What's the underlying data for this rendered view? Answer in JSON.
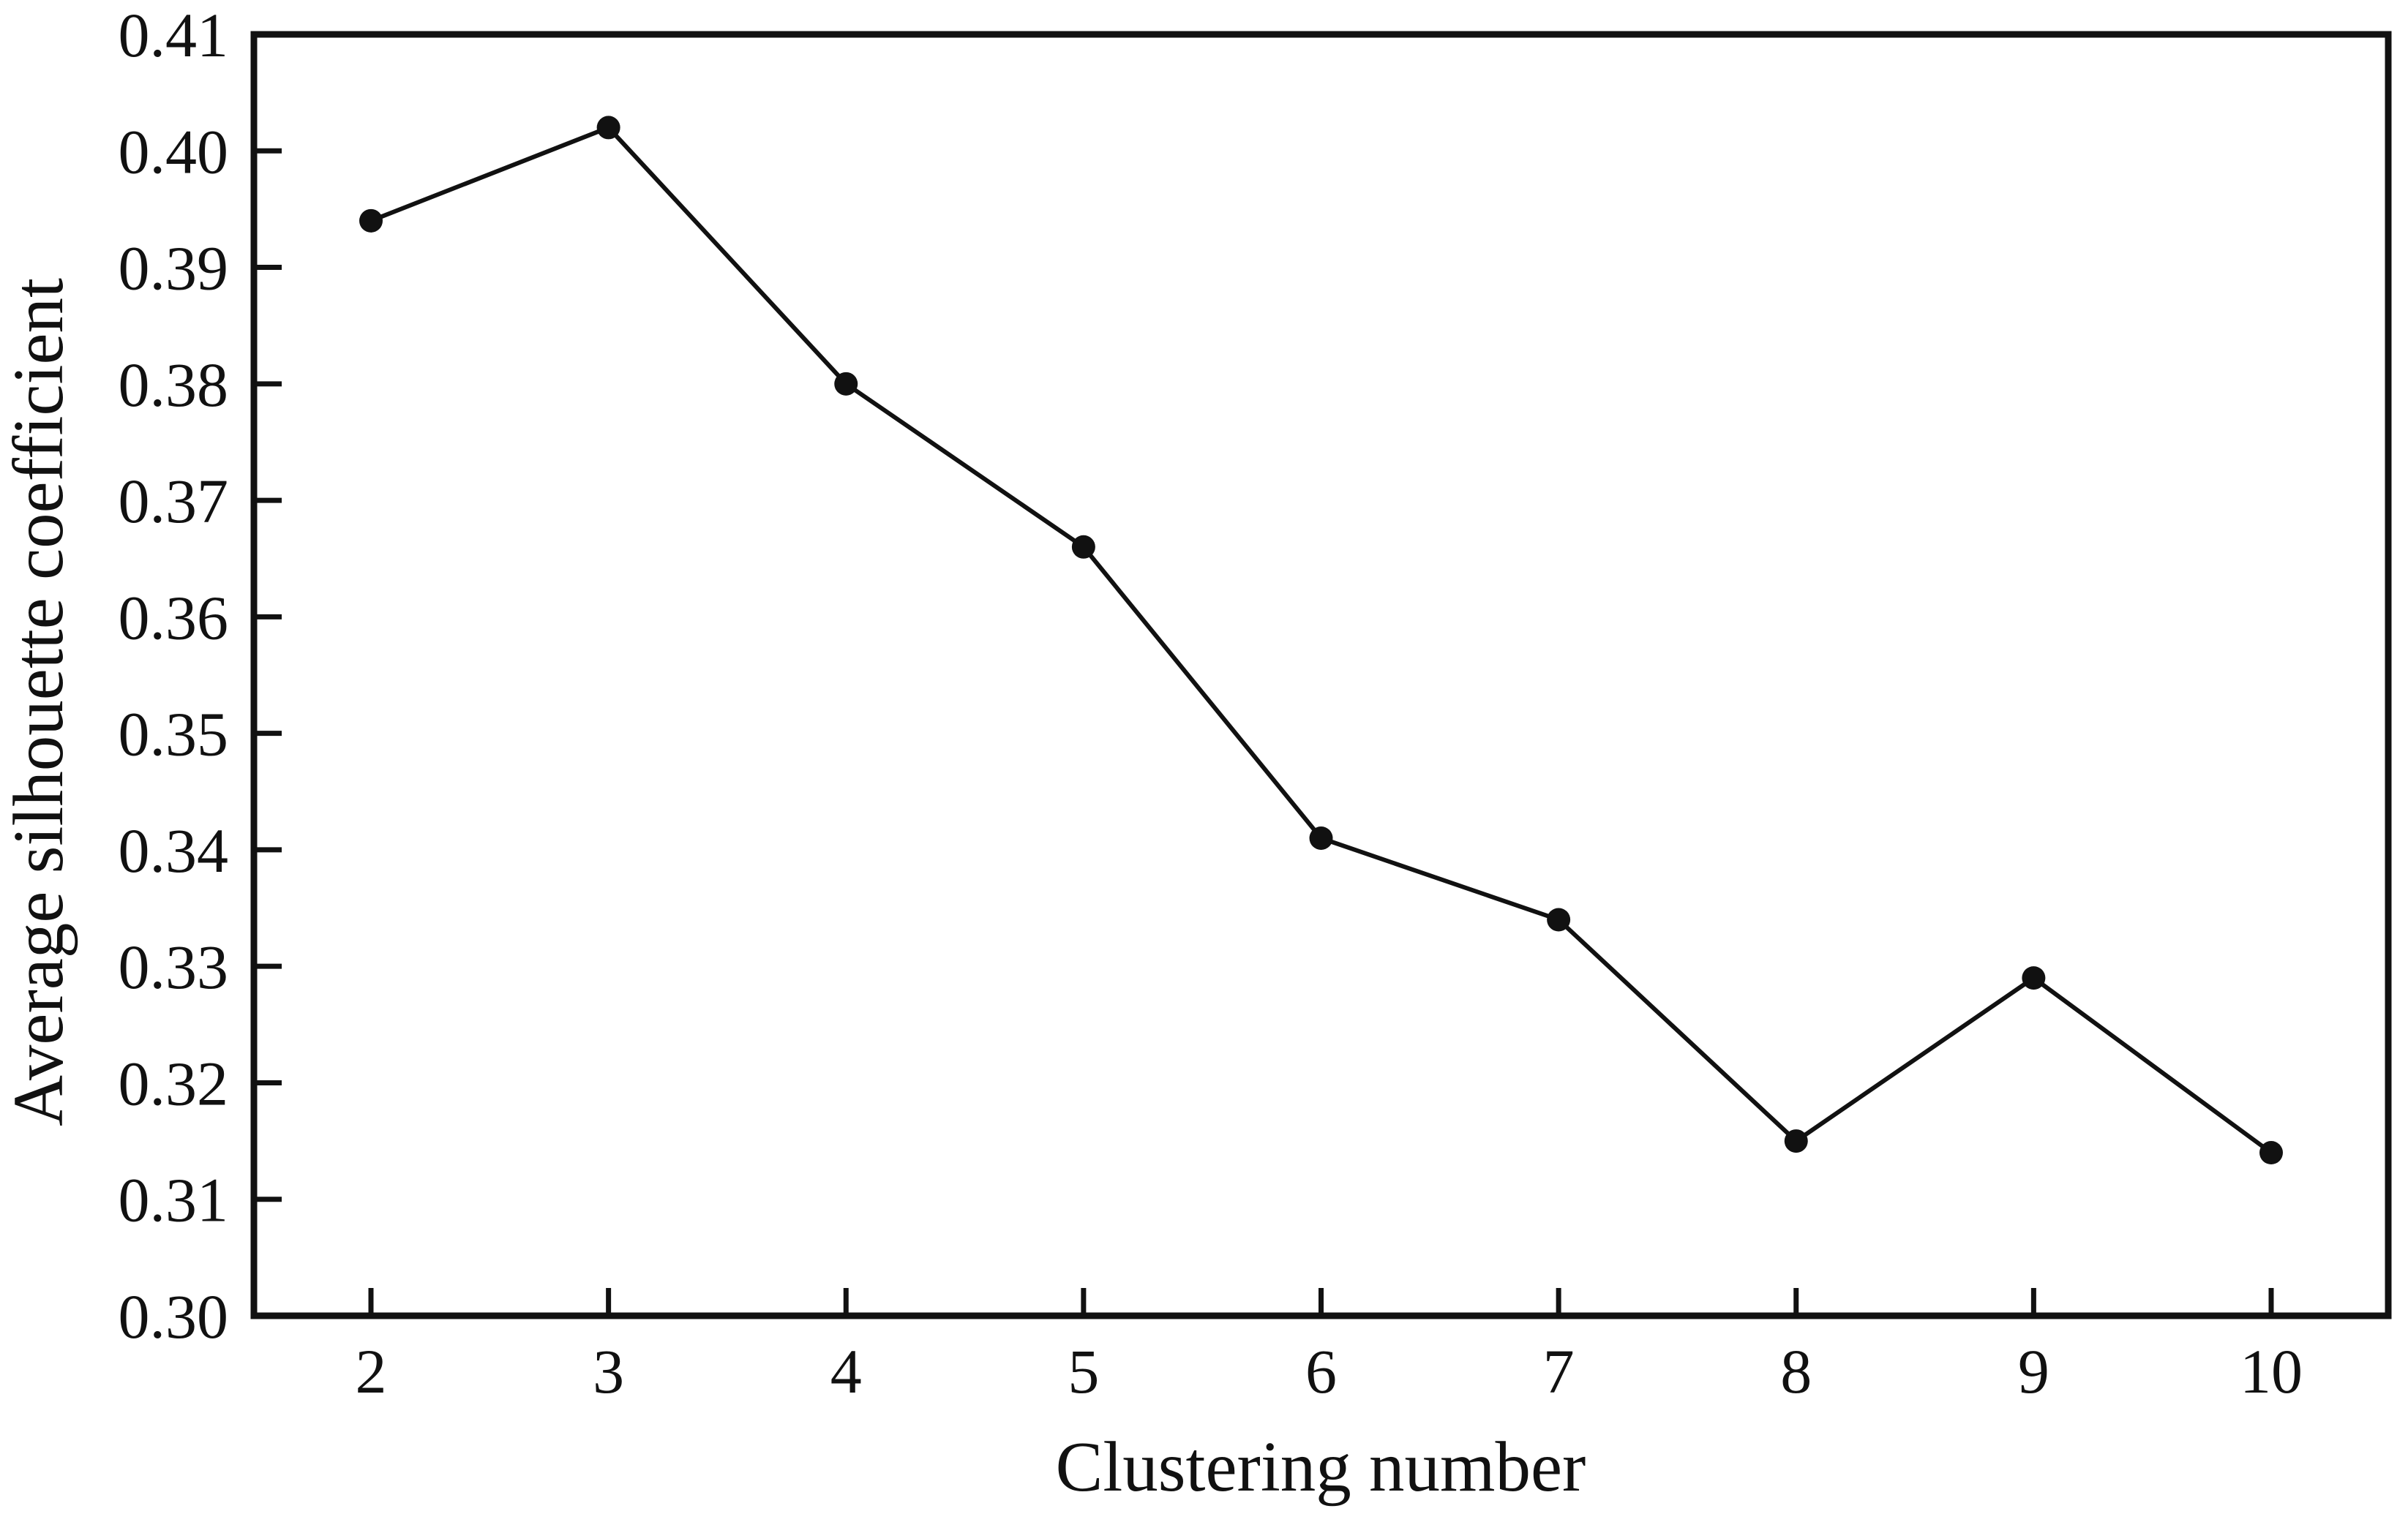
{
  "figure": {
    "background": "#ffffff",
    "ink_color": "#111111"
  },
  "chart_data": {
    "type": "line",
    "title": "",
    "xlabel": "Clustering number",
    "ylabel": "Average silhouette coefficient",
    "x": [
      2,
      3,
      4,
      5,
      6,
      7,
      8,
      9,
      10
    ],
    "y": [
      0.394,
      0.402,
      0.38,
      0.366,
      0.341,
      0.334,
      0.315,
      0.329,
      0.314
    ],
    "series_name": "Average silhouette coefficient",
    "xlim": [
      1.6,
      10.4
    ],
    "ylim": [
      0.3,
      0.41
    ],
    "xtick_labels": [
      "2",
      "3",
      "4",
      "5",
      "6",
      "7",
      "8",
      "9",
      "10"
    ],
    "ytick_labels": [
      "0.30",
      "0.31",
      "0.32",
      "0.33",
      "0.34",
      "0.35",
      "0.36",
      "0.37",
      "0.38",
      "0.39",
      "0.40",
      "0.41"
    ],
    "ytick_step": 0.01,
    "grid": false,
    "legend_position": "none",
    "marker": "circle",
    "line_color": "#111111",
    "marker_color": "#111111"
  }
}
